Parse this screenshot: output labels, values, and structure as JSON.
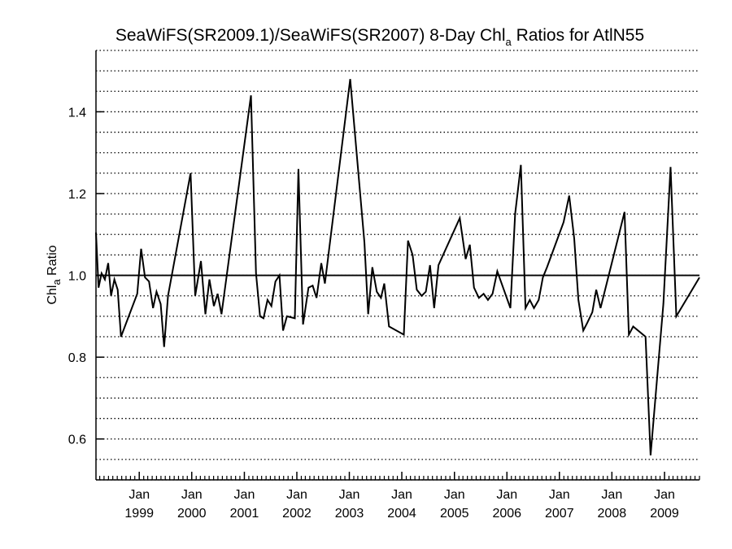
{
  "chart_data": {
    "type": "line",
    "title": {
      "part1": "SeaWiFS(SR2009.1)/SeaWiFS(SR2007) 8-Day Chl",
      "sub": "a",
      "part2": " Ratios for AtlN55"
    },
    "ylabel": {
      "main": "Chl",
      "sub": "a",
      "rest": " Ratio"
    },
    "xlabel": "",
    "xlim": [
      "1998-03-06",
      "2009-09-01"
    ],
    "ylim": [
      0.5,
      1.55
    ],
    "y_ticks": [
      {
        "value": 0.6,
        "label": "0.6"
      },
      {
        "value": 0.8,
        "label": "0.8"
      },
      {
        "value": 1.0,
        "label": "1.0"
      },
      {
        "value": 1.2,
        "label": "1.2"
      },
      {
        "value": 1.4,
        "label": "1.4"
      }
    ],
    "x_ticks": [
      {
        "date": "1999-01-01",
        "month": "Jan",
        "year": "1999"
      },
      {
        "date": "2000-01-01",
        "month": "Jan",
        "year": "2000"
      },
      {
        "date": "2001-01-01",
        "month": "Jan",
        "year": "2001"
      },
      {
        "date": "2002-01-01",
        "month": "Jan",
        "year": "2002"
      },
      {
        "date": "2003-01-01",
        "month": "Jan",
        "year": "2003"
      },
      {
        "date": "2004-01-01",
        "month": "Jan",
        "year": "2004"
      },
      {
        "date": "2005-01-01",
        "month": "Jan",
        "year": "2005"
      },
      {
        "date": "2006-01-01",
        "month": "Jan",
        "year": "2006"
      },
      {
        "date": "2007-01-01",
        "month": "Jan",
        "year": "2007"
      },
      {
        "date": "2008-01-01",
        "month": "Jan",
        "year": "2008"
      },
      {
        "date": "2009-01-01",
        "month": "Jan",
        "year": "2009"
      }
    ],
    "grid": {
      "y_dotted_step": 0.05,
      "y_dotted_from": 0.45,
      "y_dotted_to": 1.55
    },
    "reference_line": 1.0,
    "series": [
      {
        "points": [
          [
            "1998-03-06",
            1.105
          ],
          [
            "1998-03-24",
            0.97
          ],
          [
            "1998-04-14",
            1.005
          ],
          [
            "1998-05-07",
            0.99
          ],
          [
            "1998-05-30",
            1.03
          ],
          [
            "1998-06-19",
            0.95
          ],
          [
            "1998-07-12",
            0.99
          ],
          [
            "1998-08-04",
            0.965
          ],
          [
            "1998-08-27",
            0.85
          ],
          [
            "1998-12-18",
            0.955
          ],
          [
            "1999-01-14",
            1.065
          ],
          [
            "1999-02-10",
            0.995
          ],
          [
            "1999-03-10",
            0.985
          ],
          [
            "1999-04-07",
            0.92
          ],
          [
            "1999-05-01",
            0.96
          ],
          [
            "1999-05-30",
            0.93
          ],
          [
            "1999-06-23",
            0.825
          ],
          [
            "1999-07-20",
            0.95
          ],
          [
            "1999-12-24",
            1.25
          ],
          [
            "2000-01-25",
            0.95
          ],
          [
            "2000-03-05",
            1.035
          ],
          [
            "2000-04-05",
            0.905
          ],
          [
            "2000-05-03",
            0.99
          ],
          [
            "2000-06-03",
            0.925
          ],
          [
            "2000-06-29",
            0.955
          ],
          [
            "2000-07-26",
            0.905
          ],
          [
            "2001-02-16",
            1.44
          ],
          [
            "2001-03-23",
            1.005
          ],
          [
            "2001-04-20",
            0.9
          ],
          [
            "2001-05-14",
            0.895
          ],
          [
            "2001-06-11",
            0.94
          ],
          [
            "2001-07-08",
            0.925
          ],
          [
            "2001-08-05",
            0.985
          ],
          [
            "2001-09-02",
            1.0
          ],
          [
            "2001-09-27",
            0.865
          ],
          [
            "2001-10-24",
            0.9
          ],
          [
            "2001-12-18",
            0.895
          ],
          [
            "2002-01-12",
            1.26
          ],
          [
            "2002-02-13",
            0.88
          ],
          [
            "2002-03-23",
            0.97
          ],
          [
            "2002-04-21",
            0.975
          ],
          [
            "2002-05-18",
            0.945
          ],
          [
            "2002-06-20",
            1.03
          ],
          [
            "2002-07-15",
            0.98
          ],
          [
            "2003-01-07",
            1.48
          ],
          [
            "2003-04-16",
            1.08
          ],
          [
            "2003-05-12",
            0.905
          ],
          [
            "2003-06-10",
            1.02
          ],
          [
            "2003-07-11",
            0.96
          ],
          [
            "2003-08-09",
            0.945
          ],
          [
            "2003-09-01",
            0.98
          ],
          [
            "2003-10-04",
            0.875
          ],
          [
            "2004-01-15",
            0.855
          ],
          [
            "2004-02-13",
            1.085
          ],
          [
            "2004-03-16",
            1.05
          ],
          [
            "2004-04-14",
            0.965
          ],
          [
            "2004-05-18",
            0.95
          ],
          [
            "2004-06-16",
            0.96
          ],
          [
            "2004-07-15",
            1.025
          ],
          [
            "2004-08-13",
            0.92
          ],
          [
            "2004-09-12",
            1.025
          ],
          [
            "2005-02-07",
            1.14
          ],
          [
            "2005-03-20",
            1.04
          ],
          [
            "2005-04-18",
            1.075
          ],
          [
            "2005-05-17",
            0.97
          ],
          [
            "2005-06-20",
            0.945
          ],
          [
            "2005-07-23",
            0.955
          ],
          [
            "2005-08-22",
            0.94
          ],
          [
            "2005-09-23",
            0.955
          ],
          [
            "2005-10-26",
            1.01
          ],
          [
            "2006-01-25",
            0.92
          ],
          [
            "2006-02-27",
            1.15
          ],
          [
            "2006-04-08",
            1.27
          ],
          [
            "2006-05-10",
            0.92
          ],
          [
            "2006-06-09",
            0.94
          ],
          [
            "2006-07-08",
            0.92
          ],
          [
            "2006-08-10",
            0.94
          ],
          [
            "2006-09-08",
            0.995
          ],
          [
            "2006-10-07",
            1.02
          ],
          [
            "2007-01-30",
            1.13
          ],
          [
            "2007-03-10",
            1.195
          ],
          [
            "2007-04-14",
            1.09
          ],
          [
            "2007-05-13",
            0.94
          ],
          [
            "2007-06-16",
            0.865
          ],
          [
            "2007-07-15",
            0.885
          ],
          [
            "2007-08-18",
            0.91
          ],
          [
            "2007-09-14",
            0.965
          ],
          [
            "2007-10-14",
            0.92
          ],
          [
            "2008-03-29",
            1.155
          ],
          [
            "2008-04-28",
            0.855
          ],
          [
            "2008-05-28",
            0.875
          ],
          [
            "2008-08-22",
            0.85
          ],
          [
            "2008-09-26",
            0.56
          ],
          [
            "2008-12-24",
            0.93
          ],
          [
            "2009-02-12",
            1.265
          ],
          [
            "2009-03-24",
            0.9
          ],
          [
            "2009-09-01",
            0.995
          ]
        ]
      }
    ]
  }
}
